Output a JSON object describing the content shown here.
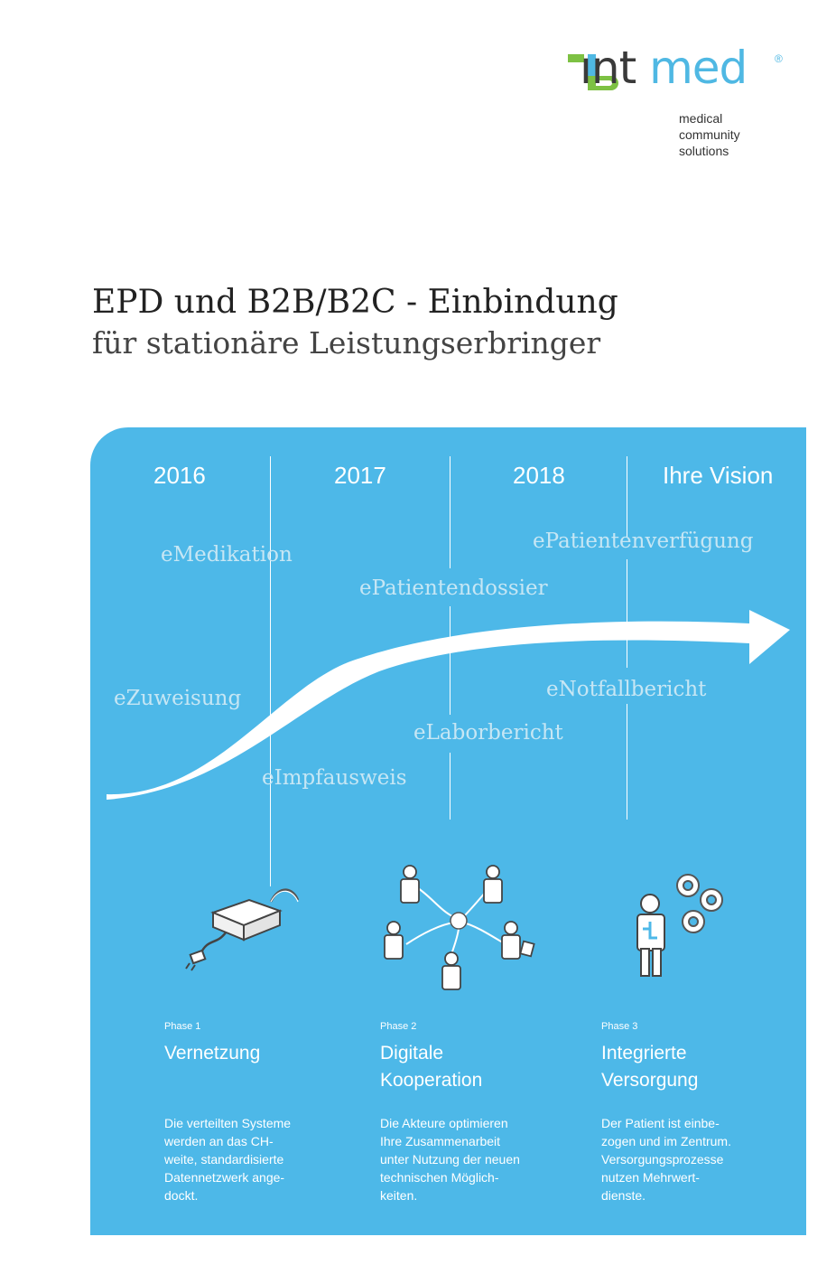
{
  "logo": {
    "name_int": "ınt",
    "name_med": "med",
    "registered": "®",
    "tagline": [
      "medical",
      "community",
      "solutions"
    ],
    "colors": {
      "green": "#7dc143",
      "blue": "#4fb8e3",
      "dark": "#3a3a3a"
    }
  },
  "title": {
    "line1": "EPD und B2B/B2C - Einbindung",
    "line2": "für stationäre Leistungserbringer"
  },
  "timeline": {
    "years": [
      "2016",
      "2017",
      "2018",
      "Ihre Vision"
    ],
    "services": {
      "emedikation": "eMedikation",
      "epatientendossier": "ePatientendossier",
      "epatientenverfuegung": "ePatientenverfügung",
      "ezuweisung": "eZuweisung",
      "eimpfausweis": "eImpfausweis",
      "elaborbericht": "eLaborbericht",
      "enotfallbericht": "eNotfallbericht"
    },
    "panel_color": "#4db8e8"
  },
  "phases": [
    {
      "label": "Phase 1",
      "title": [
        "Vernetzung"
      ],
      "desc": [
        "Die verteilten Systeme",
        "werden an das CH-",
        "weite, standardisierte",
        "Datennetzwerk ange-",
        "dockt."
      ]
    },
    {
      "label": "Phase 2",
      "title": [
        "Digitale",
        "Kooperation"
      ],
      "desc": [
        "Die Akteure optimieren",
        "Ihre Zusammenarbeit",
        "unter Nutzung der neuen",
        "technischen Möglich-",
        "keiten."
      ]
    },
    {
      "label": "Phase 3",
      "title": [
        "Integrierte",
        "Versorgung"
      ],
      "desc": [
        "Der Patient ist einbe-",
        "zogen und im Zentrum.",
        "Versorgungsprozesse",
        "nutzen Mehrwert-",
        "dienste."
      ]
    }
  ]
}
